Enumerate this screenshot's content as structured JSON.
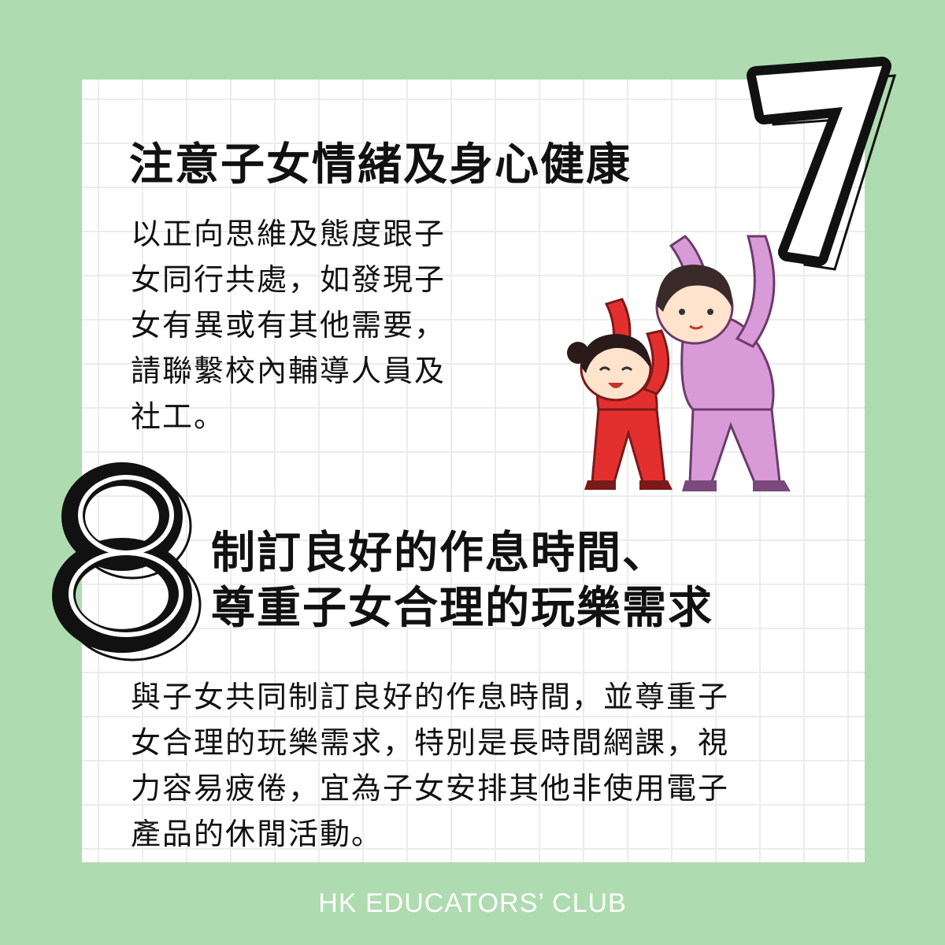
{
  "colors": {
    "background": "#aedcb0",
    "card": "#ffffff",
    "grid": "#ececec",
    "text": "#111111",
    "footer_text": "#ffffff"
  },
  "section7": {
    "number": "7",
    "title": "注意子女情緒及身心健康",
    "body": "以正向思維及態度跟子\n女同行共處，如發現子\n女有異或有其他需要，\n請聯繫校內輔導人員及\n社工。"
  },
  "section8": {
    "number": "8",
    "title": "制訂良好的作息時間、\n尊重子女合理的玩樂需求",
    "body": "與子女共同制訂良好的作息時間，並尊重子\n女合理的玩樂需求，特別是長時間網課，視\n力容易疲倦，宜為子女安排其他非使用電子\n產品的休閒活動。"
  },
  "illustration": "mother-and-daughter-stretching",
  "footer": {
    "brand": "HK EDUCATORS’ CLUB"
  }
}
